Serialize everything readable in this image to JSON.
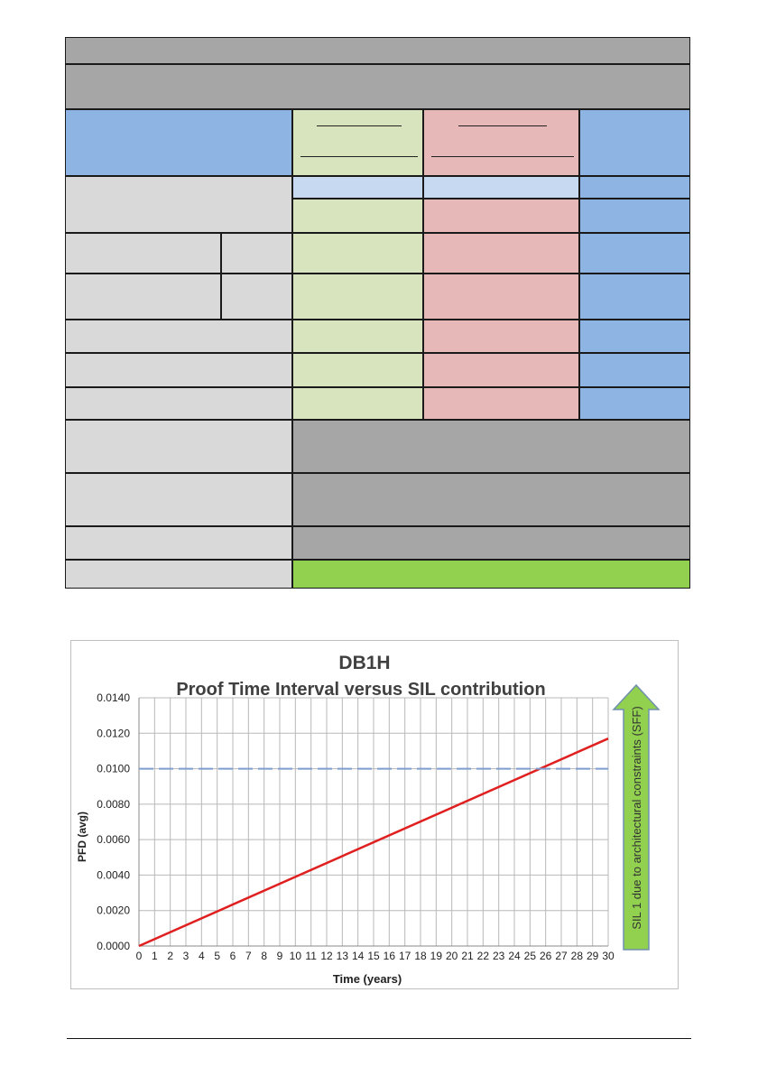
{
  "table": {
    "rows": [
      {
        "label": "",
        "col_green": "",
        "col_pink": "",
        "col_blue": ""
      }
    ]
  },
  "chart_data": {
    "type": "line",
    "title": "DB1H",
    "subtitle": "Proof Time Interval versus SIL contribution",
    "xlabel": "Time (years)",
    "ylabel": "PFD (avg)",
    "xlim": [
      0,
      30
    ],
    "ylim": [
      0,
      0.014
    ],
    "x_ticks": [
      0,
      1,
      2,
      3,
      4,
      5,
      6,
      7,
      8,
      9,
      10,
      11,
      12,
      13,
      14,
      15,
      16,
      17,
      18,
      19,
      20,
      21,
      22,
      23,
      24,
      25,
      26,
      27,
      28,
      29,
      30
    ],
    "y_ticks": [
      "0.0000",
      "0.0020",
      "0.0040",
      "0.0060",
      "0.0080",
      "0.0100",
      "0.0120",
      "0.0140"
    ],
    "grid": true,
    "series": [
      {
        "name": "",
        "style": "solid",
        "color": "#e02020",
        "x": [
          0,
          30
        ],
        "y": [
          0.0,
          0.0117
        ]
      },
      {
        "name": "",
        "style": "dashed",
        "color": "#7f9ccf",
        "x": [
          0,
          30
        ],
        "y": [
          0.01,
          0.01
        ]
      }
    ],
    "annotation": {
      "text": "SIL 1 due to architectural constraints (SFF)",
      "color": "#92d050"
    }
  }
}
